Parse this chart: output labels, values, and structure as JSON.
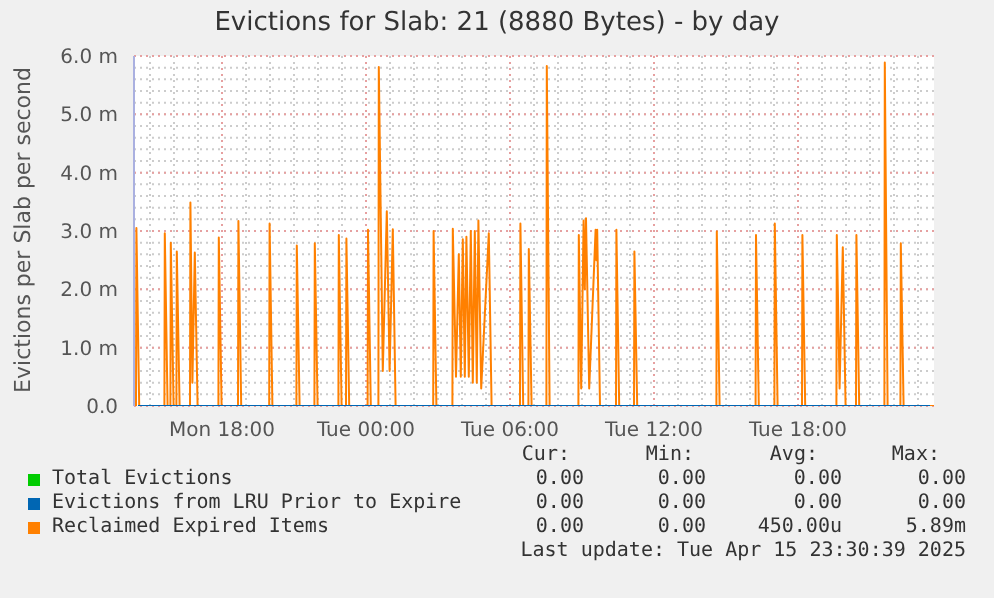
{
  "chart_data": {
    "type": "line",
    "title": "Evictions for Slab: 21 (8880 Bytes) - by day",
    "ylabel": "Evictions per Slab per second",
    "xlim": [
      "2025-04-14T14:20",
      "2025-04-15T23:40"
    ],
    "xticks": [
      {
        "value": "2025-04-14T15:00",
        "label": null
      },
      {
        "value": "2025-04-14T16:00",
        "label": null
      },
      {
        "value": "2025-04-14T17:00",
        "label": null
      },
      {
        "value": "2025-04-14T18:00",
        "label": "Mon 18:00"
      },
      {
        "value": "2025-04-14T19:00",
        "label": null
      },
      {
        "value": "2025-04-14T20:00",
        "label": null
      },
      {
        "value": "2025-04-14T21:00",
        "label": null
      },
      {
        "value": "2025-04-14T22:00",
        "label": null
      },
      {
        "value": "2025-04-14T23:00",
        "label": null
      },
      {
        "value": "2025-04-15T00:00",
        "label": "Tue 00:00"
      },
      {
        "value": "2025-04-15T01:00",
        "label": null
      },
      {
        "value": "2025-04-15T02:00",
        "label": null
      },
      {
        "value": "2025-04-15T03:00",
        "label": null
      },
      {
        "value": "2025-04-15T04:00",
        "label": null
      },
      {
        "value": "2025-04-15T05:00",
        "label": null
      },
      {
        "value": "2025-04-15T06:00",
        "label": "Tue 06:00"
      },
      {
        "value": "2025-04-15T07:00",
        "label": null
      },
      {
        "value": "2025-04-15T08:00",
        "label": null
      },
      {
        "value": "2025-04-15T09:00",
        "label": null
      },
      {
        "value": "2025-04-15T10:00",
        "label": null
      },
      {
        "value": "2025-04-15T11:00",
        "label": null
      },
      {
        "value": "2025-04-15T12:00",
        "label": "Tue 12:00"
      },
      {
        "value": "2025-04-15T13:00",
        "label": null
      },
      {
        "value": "2025-04-15T14:00",
        "label": null
      },
      {
        "value": "2025-04-15T15:00",
        "label": null
      },
      {
        "value": "2025-04-15T16:00",
        "label": null
      },
      {
        "value": "2025-04-15T17:00",
        "label": null
      },
      {
        "value": "2025-04-15T18:00",
        "label": "Tue 18:00"
      },
      {
        "value": "2025-04-15T19:00",
        "label": null
      },
      {
        "value": "2025-04-15T20:00",
        "label": null
      },
      {
        "value": "2025-04-15T21:00",
        "label": null
      },
      {
        "value": "2025-04-15T22:00",
        "label": null
      },
      {
        "value": "2025-04-15T23:00",
        "label": null
      }
    ],
    "ylim": [
      0,
      6
    ],
    "yticks": [
      {
        "value": 0,
        "label": "0.0"
      },
      {
        "value": 0.2,
        "label": null
      },
      {
        "value": 0.4,
        "label": null
      },
      {
        "value": 0.6,
        "label": null
      },
      {
        "value": 0.8,
        "label": null
      },
      {
        "value": 1,
        "label": "1.0 m"
      },
      {
        "value": 1.2,
        "label": null
      },
      {
        "value": 1.4,
        "label": null
      },
      {
        "value": 1.6,
        "label": null
      },
      {
        "value": 1.8,
        "label": null
      },
      {
        "value": 2,
        "label": "2.0 m"
      },
      {
        "value": 2.2,
        "label": null
      },
      {
        "value": 2.4,
        "label": null
      },
      {
        "value": 2.6,
        "label": null
      },
      {
        "value": 2.8,
        "label": null
      },
      {
        "value": 3,
        "label": "3.0 m"
      },
      {
        "value": 3.2,
        "label": null
      },
      {
        "value": 3.4,
        "label": null
      },
      {
        "value": 3.6,
        "label": null
      },
      {
        "value": 3.8,
        "label": null
      },
      {
        "value": 4,
        "label": "4.0 m"
      },
      {
        "value": 4.2,
        "label": null
      },
      {
        "value": 4.4,
        "label": null
      },
      {
        "value": 4.6,
        "label": null
      },
      {
        "value": 4.8,
        "label": null
      },
      {
        "value": 5,
        "label": "5.0 m"
      },
      {
        "value": 5.2,
        "label": null
      },
      {
        "value": 5.4,
        "label": null
      },
      {
        "value": 5.6,
        "label": null
      },
      {
        "value": 5.8,
        "label": null
      },
      {
        "value": 6,
        "label": "6.0 m"
      }
    ],
    "grid": true,
    "legend": "bottom",
    "series": [
      {
        "name": "Total Evictions",
        "color": "#00cc00"
      },
      {
        "name": "Evictions from LRU Prior to Expire",
        "color": "#0066b3",
        "x": [
          "2025-04-14T14:30",
          "2025-04-15T23:30"
        ],
        "values": [
          0,
          0
        ]
      },
      {
        "name": "Reclaimed Expired Items",
        "color": "#ff8000",
        "x": [
          "2025-04-14T14:25",
          "2025-04-14T14:26",
          "2025-04-14T14:33",
          "2025-04-14T15:36",
          "2025-04-14T15:37",
          "2025-04-14T15:44",
          "2025-04-14T15:51",
          "2025-04-14T15:52",
          "2025-04-14T15:59",
          "2025-04-14T16:06",
          "2025-04-14T16:07",
          "2025-04-14T16:14",
          "2025-04-14T16:40",
          "2025-04-14T16:41",
          "2025-04-14T16:46",
          "2025-04-14T16:52",
          "2025-04-14T16:59",
          "2025-04-14T17:51",
          "2025-04-14T17:52",
          "2025-04-14T17:59",
          "2025-04-14T18:40",
          "2025-04-14T18:41",
          "2025-04-14T18:48",
          "2025-04-14T19:58",
          "2025-04-14T19:59",
          "2025-04-14T20:06",
          "2025-04-14T21:06",
          "2025-04-14T21:07",
          "2025-04-14T21:14",
          "2025-04-14T21:51",
          "2025-04-14T21:52",
          "2025-04-14T21:59",
          "2025-04-14T22:51",
          "2025-04-14T22:52",
          "2025-04-14T22:59",
          "2025-04-14T23:10",
          "2025-04-14T23:11",
          "2025-04-14T23:18",
          "2025-04-15T00:04",
          "2025-04-15T00:05",
          "2025-04-15T00:12",
          "2025-04-15T00:31",
          "2025-04-15T00:32",
          "2025-04-15T00:42",
          "2025-04-15T00:52",
          "2025-04-15T00:59",
          "2025-04-15T01:07",
          "2025-04-15T01:14",
          "2025-04-15T02:48",
          "2025-04-15T02:49",
          "2025-04-15T02:56",
          "2025-04-15T03:36",
          "2025-04-15T03:37",
          "2025-04-15T03:45",
          "2025-04-15T03:52",
          "2025-04-15T03:57",
          "2025-04-15T04:02",
          "2025-04-15T04:07",
          "2025-04-15T04:11",
          "2025-04-15T04:17",
          "2025-04-15T04:22",
          "2025-04-15T04:27",
          "2025-04-15T04:32",
          "2025-04-15T04:37",
          "2025-04-15T04:41",
          "2025-04-15T04:48",
          "2025-04-15T05:07",
          "2025-04-15T05:14",
          "2025-04-15T06:25",
          "2025-04-15T06:26",
          "2025-04-15T06:33",
          "2025-04-15T06:46",
          "2025-04-15T06:47",
          "2025-04-15T06:54",
          "2025-04-15T07:31",
          "2025-04-15T07:32",
          "2025-04-15T07:39",
          "2025-04-15T08:51",
          "2025-04-15T08:52",
          "2025-04-15T08:58",
          "2025-04-15T09:04",
          "2025-04-15T09:07",
          "2025-04-15T09:10",
          "2025-04-15T09:18",
          "2025-04-15T09:34",
          "2025-04-15T09:36",
          "2025-04-15T09:38",
          "2025-04-15T09:45",
          "2025-04-15T10:25",
          "2025-04-15T10:26",
          "2025-04-15T10:33",
          "2025-04-15T11:10",
          "2025-04-15T11:11",
          "2025-04-15T11:18",
          "2025-04-15T14:36",
          "2025-04-15T14:37",
          "2025-04-15T14:44",
          "2025-04-15T16:14",
          "2025-04-15T16:15",
          "2025-04-15T16:22",
          "2025-04-15T17:01",
          "2025-04-15T17:02",
          "2025-04-15T17:09",
          "2025-04-15T18:10",
          "2025-04-15T18:11",
          "2025-04-15T18:18",
          "2025-04-15T19:36",
          "2025-04-15T19:37",
          "2025-04-15T19:44",
          "2025-04-15T19:52",
          "2025-04-15T19:59",
          "2025-04-15T20:25",
          "2025-04-15T20:26",
          "2025-04-15T20:33",
          "2025-04-15T21:36",
          "2025-04-15T21:37",
          "2025-04-15T21:44",
          "2025-04-15T22:16",
          "2025-04-15T22:17",
          "2025-04-15T22:24",
          "2025-04-15T23:40"
        ],
        "values": [
          0,
          3.05,
          0,
          0,
          2.96,
          0,
          0,
          2.8,
          0,
          0,
          2.65,
          0,
          0,
          3.49,
          0.4,
          2.63,
          0,
          0,
          2.89,
          0,
          0,
          3.17,
          0,
          0,
          3.13,
          0,
          0,
          2.75,
          0,
          0,
          2.79,
          0,
          0,
          2.93,
          0,
          0,
          2.87,
          0,
          0,
          3.02,
          0,
          0,
          5.81,
          0.6,
          3.34,
          0.6,
          3.03,
          0,
          0,
          3.0,
          0,
          0,
          3.04,
          0.5,
          2.6,
          0.5,
          2.86,
          0.5,
          2.9,
          0.5,
          3.0,
          0.4,
          3.0,
          0.4,
          3.18,
          0.3,
          2.96,
          0,
          0,
          3.13,
          0,
          0,
          2.69,
          0,
          0,
          5.83,
          0,
          0,
          2.93,
          0.3,
          3.18,
          2.0,
          3.22,
          0.3,
          3.02,
          2.5,
          3.02,
          0,
          0,
          3.02,
          0,
          0,
          2.65,
          0,
          0,
          2.99,
          0,
          0,
          2.93,
          0,
          0,
          3.13,
          0,
          0,
          2.93,
          0,
          0,
          2.93,
          0.3,
          2.72,
          0,
          0,
          2.93,
          0,
          0,
          5.89,
          0,
          0,
          2.79,
          0,
          0
        ]
      }
    ],
    "annotations": [
      "Cur:",
      "Min:",
      "Avg:",
      "Max:",
      "0.00",
      "0.00",
      "0.00",
      "0.00",
      "0.00",
      "0.00",
      "0.00",
      "0.00",
      "0.00",
      "0.00",
      "450.00u",
      "5.89m",
      "Last update: Tue Apr 15 23:30:39 2025"
    ]
  }
}
